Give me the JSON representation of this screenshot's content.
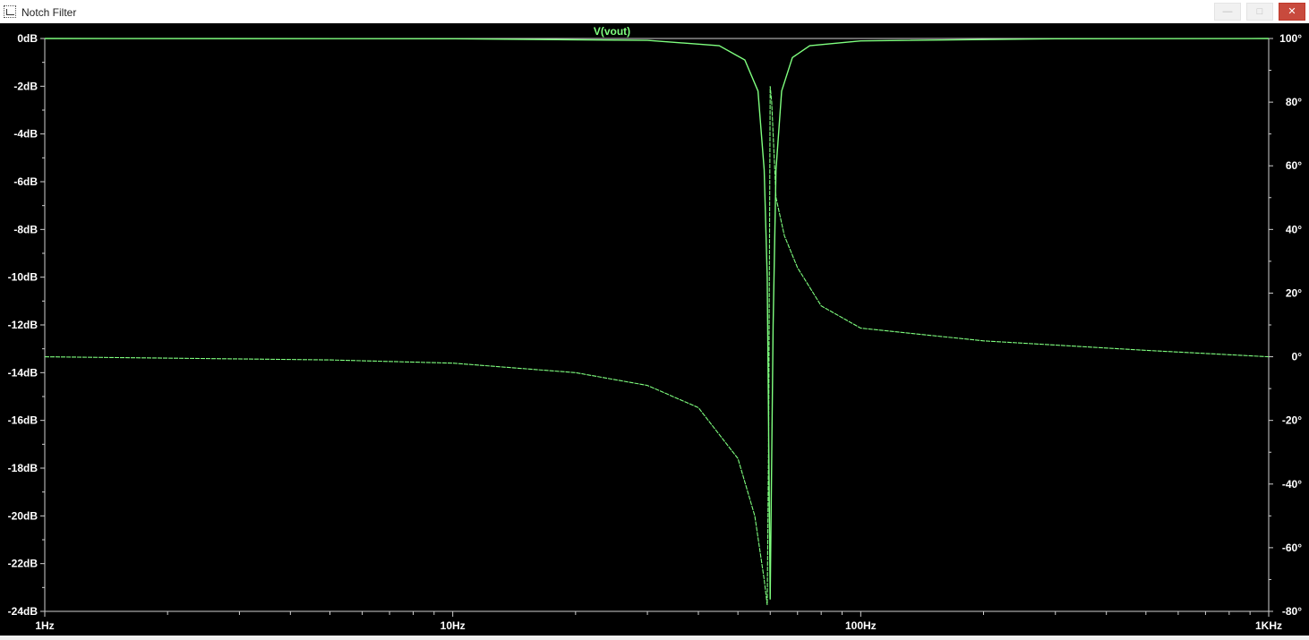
{
  "window": {
    "title": "Notch Filter",
    "minimize_icon": "minimize-icon",
    "maximize_icon": "maximize-icon",
    "close_icon": "close-icon",
    "minimize_glyph": "—",
    "maximize_glyph": "□",
    "close_glyph": "✕"
  },
  "chart_data": {
    "type": "line",
    "title": "V(vout)",
    "x_scale": "log",
    "xlim": [
      1,
      1000
    ],
    "x_ticks": [
      1,
      10,
      100,
      1000
    ],
    "x_tick_labels": [
      "1Hz",
      "10Hz",
      "100Hz",
      "1KHz"
    ],
    "y_left": {
      "ylim": [
        -24,
        0
      ],
      "ticks": [
        0,
        -2,
        -4,
        -6,
        -8,
        -10,
        -12,
        -14,
        -16,
        -18,
        -20,
        -22,
        -24
      ],
      "tick_labels": [
        "0dB",
        "-2dB",
        "-4dB",
        "-6dB",
        "-8dB",
        "-10dB",
        "-12dB",
        "-14dB",
        "-16dB",
        "-18dB",
        "-20dB",
        "-22dB",
        "-24dB"
      ]
    },
    "y_right": {
      "ylim": [
        -80,
        100
      ],
      "ticks": [
        100,
        80,
        60,
        40,
        20,
        0,
        -20,
        -40,
        -60,
        -80
      ],
      "tick_labels": [
        "100°",
        "80°",
        "60°",
        "40°",
        "20°",
        "0°",
        "-20°",
        "-40°",
        "-60°",
        "-80°"
      ]
    },
    "grid": false,
    "color": "#7fff7f",
    "series": [
      {
        "axis": "left",
        "x": [
          1,
          10,
          30,
          45,
          52,
          56,
          58,
          59,
          60,
          61,
          62,
          64,
          68,
          75,
          100,
          300,
          1000
        ],
        "y": [
          0,
          -0.01,
          -0.08,
          -0.3,
          -0.9,
          -2.2,
          -5.5,
          -10,
          -23.5,
          -12,
          -5.5,
          -2.2,
          -0.8,
          -0.3,
          -0.1,
          -0.01,
          0
        ]
      },
      {
        "axis": "right",
        "x": [
          1,
          5,
          10,
          20,
          30,
          40,
          50,
          55,
          58,
          59,
          59.5,
          60,
          60.5,
          61,
          62,
          65,
          70,
          80,
          100,
          200,
          500,
          1000
        ],
        "y": [
          0,
          -1,
          -2,
          -5,
          -9,
          -16,
          -32,
          -50,
          -70,
          -78,
          -20,
          85,
          80,
          70,
          50,
          38,
          28,
          16,
          9,
          5,
          2,
          0
        ]
      }
    ]
  }
}
